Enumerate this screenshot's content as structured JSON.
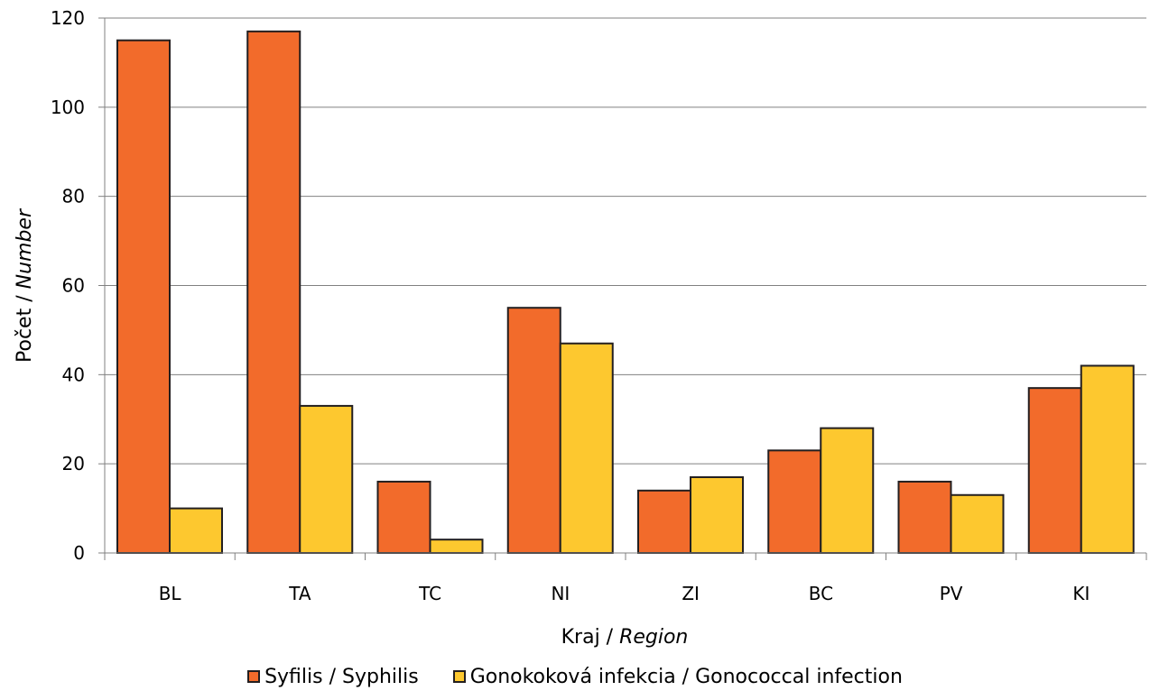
{
  "chart_data": {
    "type": "bar",
    "categories": [
      "BL",
      "TA",
      "TC",
      "NI",
      "ZI",
      "BC",
      "PV",
      "KI"
    ],
    "series": [
      {
        "name": "Syfilis / Syphilis",
        "color": "#f26b2b",
        "values": [
          115,
          117,
          16,
          55,
          14,
          23,
          16,
          37
        ]
      },
      {
        "name": "Gonokoková infekcia / Gonococcal infection",
        "color": "#fdc82f",
        "values": [
          10,
          33,
          3,
          47,
          17,
          28,
          13,
          42
        ]
      }
    ],
    "ylim": [
      0,
      120
    ],
    "yticks": [
      "0",
      "20",
      "40",
      "60",
      "80",
      "100",
      "120"
    ],
    "xlabel": {
      "main": "Kraj / ",
      "italic": "Region"
    },
    "ylabel": {
      "main": "Počet / ",
      "italic": "Number"
    },
    "grid": true,
    "legend_position": "bottom",
    "bar_border_color": "#231f20",
    "grid_color": "#808080"
  }
}
